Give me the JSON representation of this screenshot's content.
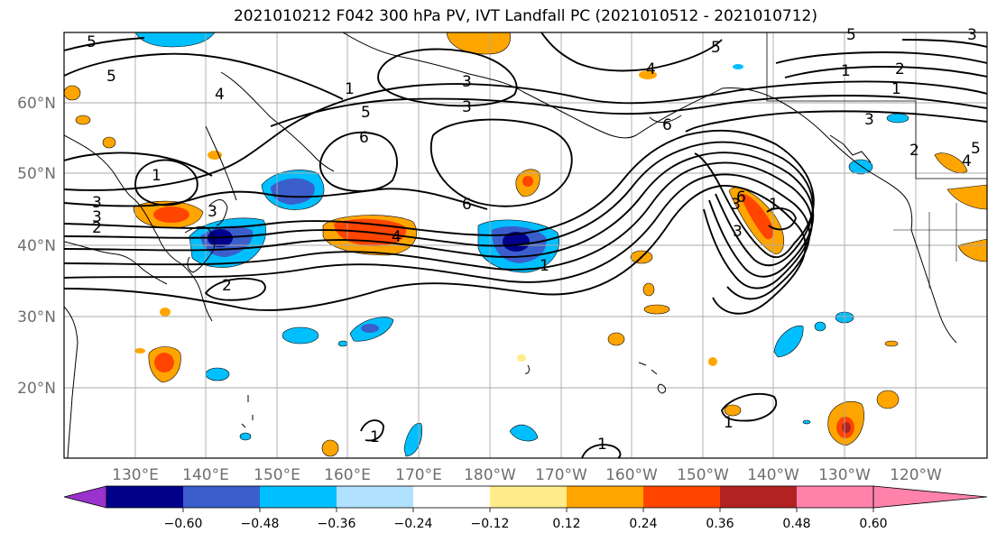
{
  "title": "2021010212 F042 300 hPa PV, IVT Landfall PC (2021010512 - 2021010712)",
  "lat_labels": [
    "60°N",
    "50°N",
    "40°N",
    "30°N",
    "20°N"
  ],
  "lon_labels": [
    "130°E",
    "140°E",
    "150°E",
    "160°E",
    "170°E",
    "180°W",
    "170°W",
    "160°W",
    "150°W",
    "140°W",
    "130°W",
    "120°W"
  ],
  "colorbar": {
    "tick_labels": [
      "−0.60",
      "−0.48",
      "−0.36",
      "−0.24",
      "−0.12",
      "0.12",
      "0.24",
      "0.36",
      "0.48",
      "0.60"
    ],
    "colors": [
      "#9a32cd",
      "#00008b",
      "#3a5fcd",
      "#00bfff",
      "#b0e2ff",
      "#ffffff",
      "#ffec8b",
      "#ffa500",
      "#ff4500",
      "#b22222",
      "#ff82ab"
    ]
  },
  "contour_labels": [
    "5",
    "5",
    "4",
    "3",
    "3",
    "3",
    "1",
    "6",
    "5",
    "6",
    "5",
    "4",
    "3",
    "1",
    "3",
    "5",
    "3",
    "2",
    "3",
    "2",
    "4",
    "1",
    "1",
    "2",
    "6",
    "6",
    "3",
    "1",
    "1",
    "1",
    "1",
    "1",
    "5",
    "3",
    "2",
    "4"
  ]
}
